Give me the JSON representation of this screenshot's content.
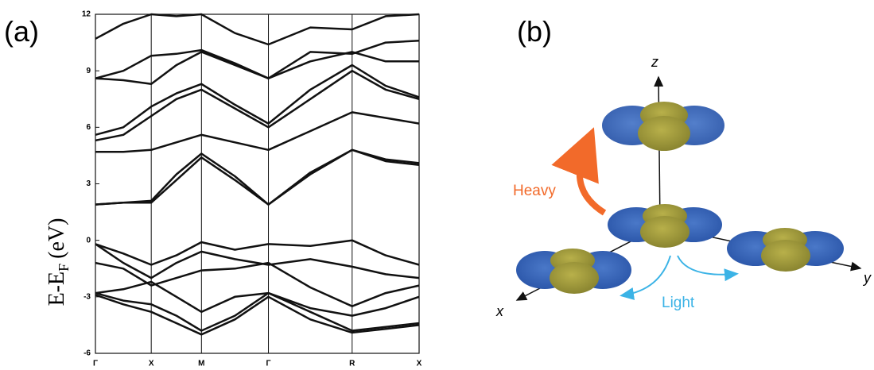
{
  "chart_data": {
    "type": "line",
    "ylabel": "E-E",
    "ylabel_sub": "F",
    "ylabel_unit": "(eV)",
    "x": [
      0,
      0.5,
      1,
      1.45,
      1.9,
      2.5,
      3.1,
      3.85,
      4.6,
      5.2,
      5.8
    ],
    "xlim": [
      0,
      5.8
    ],
    "xticks": [
      {
        "value": 0,
        "label": "Γ"
      },
      {
        "value": 1,
        "label": "X"
      },
      {
        "value": 1.9,
        "label": "M"
      },
      {
        "value": 3.1,
        "label": "Γ"
      },
      {
        "value": 4.6,
        "label": "R"
      },
      {
        "value": 5.8,
        "label": "X"
      }
    ],
    "ylim": [
      -6,
      12
    ],
    "yticks": [
      -6,
      -3,
      0,
      3,
      6,
      9,
      12
    ],
    "grid": true,
    "color": "#111111",
    "series": [
      {
        "values": [
          -0.2,
          -0.7,
          -1.3,
          -0.8,
          -0.1,
          -0.5,
          -0.2,
          -0.3,
          0.0,
          -0.8,
          -1.3
        ]
      },
      {
        "values": [
          -0.2,
          -1.2,
          -2.0,
          -1.2,
          -0.6,
          -1.0,
          -1.3,
          -1.0,
          -1.4,
          -1.8,
          -2.0
        ]
      },
      {
        "values": [
          -1.2,
          -1.5,
          -2.4,
          -2.0,
          -1.6,
          -1.5,
          -1.2,
          -2.5,
          -3.5,
          -2.8,
          -2.4
        ]
      },
      {
        "values": [
          -2.8,
          -2.6,
          -2.2,
          -3.0,
          -3.8,
          -3.0,
          -2.8,
          -3.6,
          -4.0,
          -3.6,
          -3.0
        ]
      },
      {
        "values": [
          -2.8,
          -3.2,
          -3.4,
          -4.0,
          -4.8,
          -4.0,
          -2.8,
          -3.8,
          -4.8,
          -4.6,
          -4.4
        ]
      },
      {
        "values": [
          -2.9,
          -3.4,
          -3.8,
          -4.4,
          -5.0,
          -4.2,
          -3.0,
          -4.2,
          -4.9,
          -4.7,
          -4.5
        ]
      },
      {
        "values": [
          1.9,
          2.0,
          2.0,
          3.2,
          4.4,
          3.2,
          1.9,
          3.5,
          4.8,
          4.2,
          4.0
        ]
      },
      {
        "values": [
          1.9,
          2.0,
          2.1,
          3.5,
          4.6,
          3.4,
          1.9,
          3.6,
          4.8,
          4.3,
          4.1
        ]
      },
      {
        "values": [
          4.7,
          4.7,
          4.8,
          5.2,
          5.6,
          5.2,
          4.8,
          5.8,
          6.8,
          6.5,
          6.2
        ]
      },
      {
        "values": [
          5.3,
          5.6,
          6.6,
          7.5,
          8.0,
          7.0,
          6.0,
          7.5,
          9.0,
          8.0,
          7.5
        ]
      },
      {
        "values": [
          5.6,
          6.0,
          7.1,
          7.8,
          8.3,
          7.2,
          6.2,
          8.0,
          9.3,
          8.2,
          7.6
        ]
      },
      {
        "values": [
          8.6,
          8.5,
          8.3,
          9.3,
          10.0,
          9.3,
          8.6,
          9.5,
          10.0,
          9.5,
          9.5
        ]
      },
      {
        "values": [
          8.6,
          9.0,
          9.8,
          9.9,
          10.1,
          9.4,
          8.6,
          10.0,
          9.9,
          10.5,
          10.6
        ]
      },
      {
        "values": [
          10.7,
          11.5,
          12,
          11.9,
          12,
          11,
          10.4,
          11.3,
          11.2,
          11.9,
          12
        ]
      }
    ]
  },
  "panels": [
    "(a)",
    "(b)"
  ],
  "diagram": {
    "x_axis": "x",
    "y_axis": "y",
    "z_axis": "z",
    "heavy": "Heavy",
    "light": "Light"
  }
}
